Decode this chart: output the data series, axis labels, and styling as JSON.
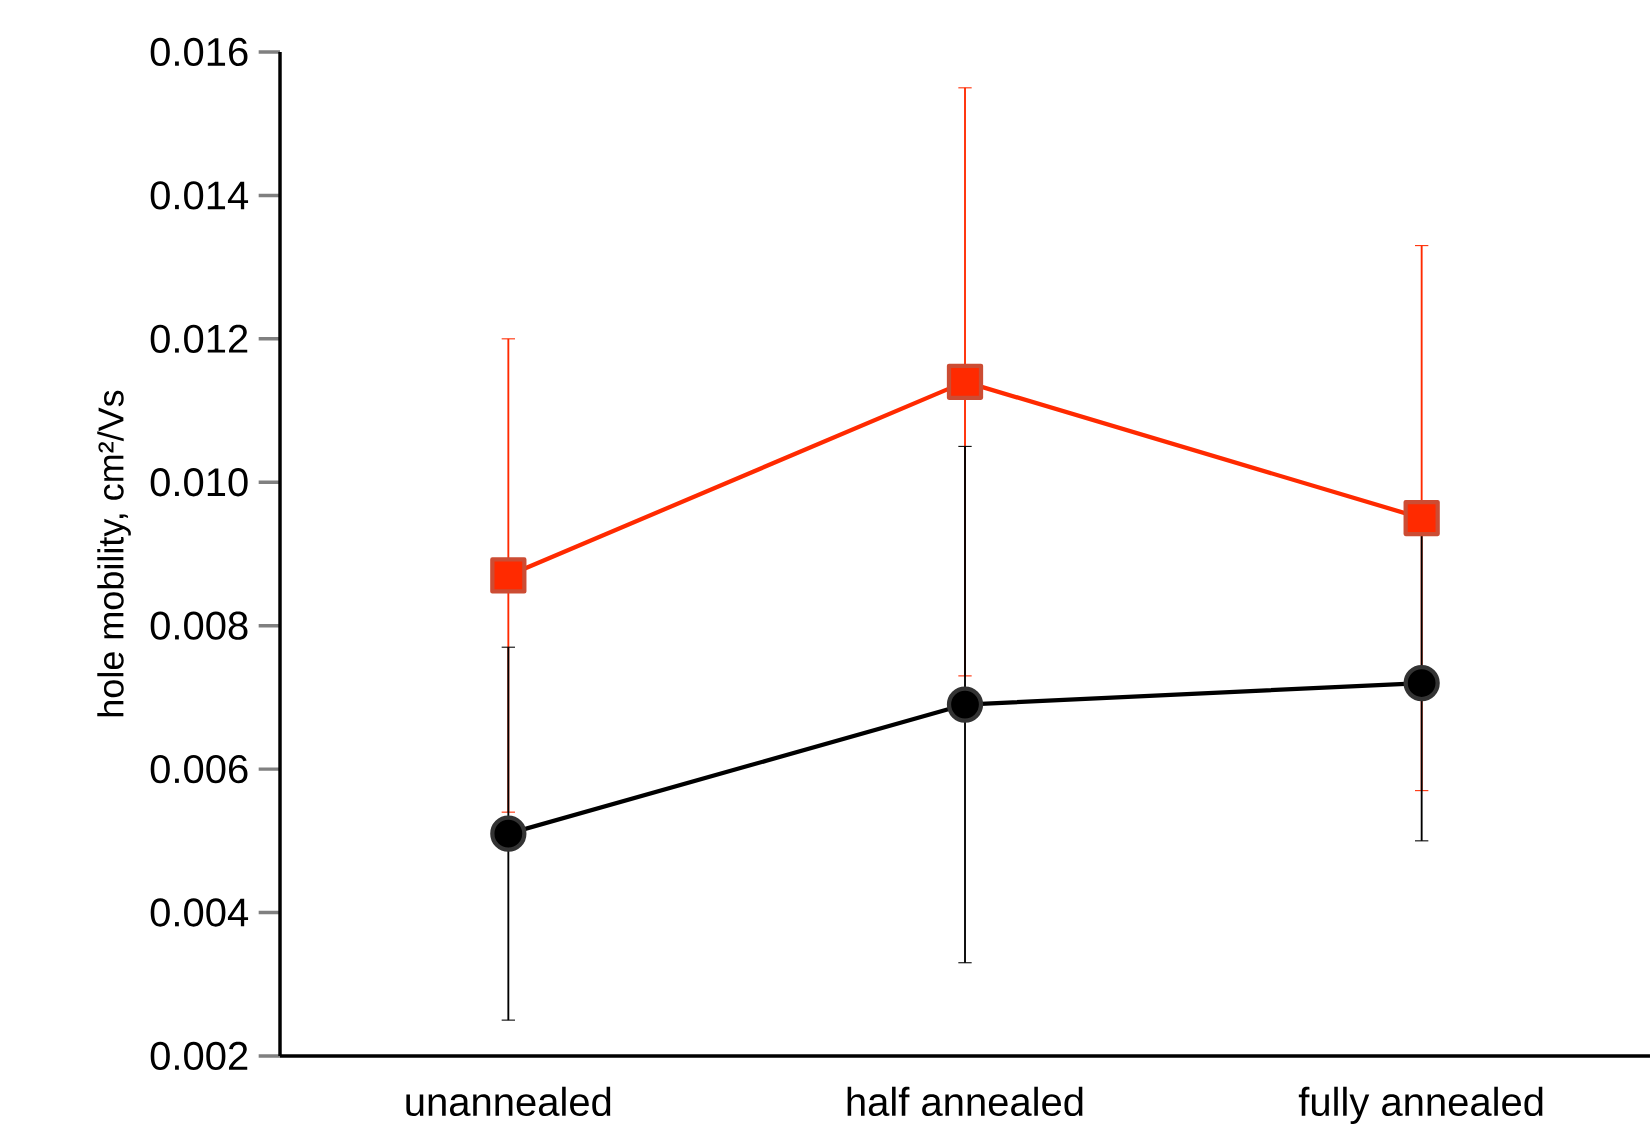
{
  "chart_data": {
    "type": "line",
    "ylabel": "hole mobility, cm²/Vs",
    "categories": [
      "unannealed",
      "half annealed",
      "fully annealed"
    ],
    "series": [
      {
        "color": "#ff2a00",
        "marker": "square",
        "values": [
          0.0087,
          0.0114,
          0.0095
        ],
        "errors": [
          0.0033,
          0.0041,
          0.0038
        ]
      },
      {
        "color": "#000000",
        "marker": "circle",
        "values": [
          0.0051,
          0.0069,
          0.0072
        ],
        "errors": [
          0.0026,
          0.0036,
          0.0022
        ]
      }
    ],
    "ylim": [
      0.002,
      0.016
    ],
    "yticks": [
      {
        "value": 0.002,
        "label": "0.002"
      },
      {
        "value": 0.004,
        "label": "0.004"
      },
      {
        "value": 0.006,
        "label": "0.006"
      },
      {
        "value": 0.008,
        "label": "0.008"
      },
      {
        "value": 0.01,
        "label": "0.010"
      },
      {
        "value": 0.012,
        "label": "0.012"
      },
      {
        "value": 0.014,
        "label": "0.014"
      },
      {
        "value": 0.016,
        "label": "0.016"
      }
    ]
  }
}
